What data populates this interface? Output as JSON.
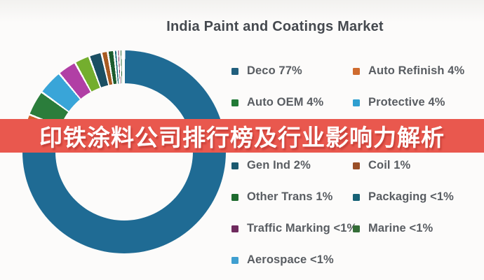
{
  "title": "India Paint and Coatings Market",
  "banner": {
    "text": "印铁涂料公司排行榜及行业影响力解析",
    "bg_color": "#e9584e",
    "text_color": "#ffffff"
  },
  "legend": {
    "rows": [
      {
        "left": {
          "label": "Deco 77%",
          "color": "#215f7d"
        },
        "right": {
          "label": "Auto Refinish 4%",
          "color": "#cf6b2e"
        }
      },
      {
        "left": {
          "label": "Auto OEM 4%",
          "color": "#217a36"
        },
        "right": {
          "label": "Protective 4%",
          "color": "#2f9fd0"
        }
      },
      {
        "left": null,
        "right": null,
        "obscured_by_banner": true
      },
      {
        "left": {
          "label": "Gen Ind 2%",
          "color": "#1b5a70"
        },
        "right": {
          "label": "Coil 1%",
          "color": "#9a4f28"
        }
      },
      {
        "left": {
          "label": "Other Trans 1%",
          "color": "#1e6b2e"
        },
        "right": {
          "label": "Packaging <1%",
          "color": "#176276"
        }
      },
      {
        "left": {
          "label": "Traffic Marking <1%",
          "color": "#6f2a5e"
        },
        "right": {
          "label": "Marine <1%",
          "color": "#356e38"
        }
      },
      {
        "left": {
          "label": "Aerospace <1%",
          "color": "#3f9fd0"
        },
        "right": null
      }
    ]
  },
  "chart_data": {
    "type": "pie",
    "variant": "donut",
    "title": "India Paint and Coatings Market",
    "start_angle_deg": 0,
    "direction": "clockwise",
    "segment_gap_color": "#ffffff",
    "segments": [
      {
        "label": "Deco",
        "display": "77%",
        "value": 77,
        "color": "#1f6b94"
      },
      {
        "label": "Auto Refinish",
        "display": "4%",
        "value": 4,
        "color": "#d2622d"
      },
      {
        "label": "Auto OEM",
        "display": "4%",
        "value": 4,
        "color": "#2b7d3b"
      },
      {
        "label": "Protective",
        "display": "4%",
        "value": 4,
        "color": "#39a5d8"
      },
      {
        "label": "",
        "display": "(obscured by banner)",
        "value": 3,
        "color": "#b13fa5"
      },
      {
        "label": "",
        "display": "(obscured by banner)",
        "value": 2.4,
        "color": "#74ae2e"
      },
      {
        "label": "Gen Ind",
        "display": "2%",
        "value": 2,
        "color": "#1b4f63"
      },
      {
        "label": "Coil",
        "display": "1%",
        "value": 1,
        "color": "#a85b22"
      },
      {
        "label": "Other Trans",
        "display": "1%",
        "value": 1,
        "color": "#1d5c2e"
      },
      {
        "label": "Packaging",
        "display": "<1%",
        "value": 0.5,
        "color": "#1d6f7e"
      },
      {
        "label": "Traffic Marking",
        "display": "<1%",
        "value": 0.4,
        "color": "#7c2855"
      },
      {
        "label": "Marine",
        "display": "<1%",
        "value": 0.4,
        "color": "#2e6b38"
      },
      {
        "label": "Aerospace",
        "display": "<1%",
        "value": 0.3,
        "color": "#3f9fd0"
      }
    ]
  }
}
